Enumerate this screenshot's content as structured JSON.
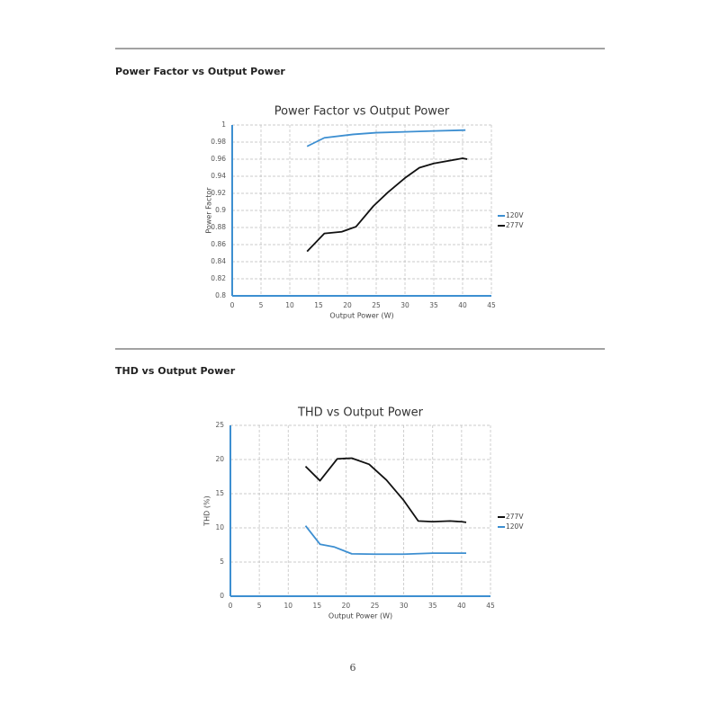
{
  "sections": [
    {
      "heading": "Power Factor vs Output Power"
    },
    {
      "heading": "THD vs Output Power"
    }
  ],
  "page_number": 6,
  "chart_data": [
    {
      "type": "line",
      "title": "Power Factor vs Output Power",
      "x_label": "Output Power (W)",
      "y_label": "Power Factor",
      "xlim": [
        0,
        45
      ],
      "xticks": [
        0,
        5,
        10,
        15,
        20,
        25,
        30,
        35,
        40,
        45
      ],
      "ylim": [
        0.8,
        1
      ],
      "yticks": [
        0.8,
        0.82,
        0.84,
        0.86,
        0.88,
        0.9,
        0.92,
        0.94,
        0.96,
        0.98,
        1
      ],
      "grid": true,
      "legend": "right",
      "series": [
        {
          "name": "120V",
          "color": "#3d8fd1",
          "x": [
            13,
            16,
            21,
            25,
            30,
            35,
            40.5
          ],
          "values": [
            0.975,
            0.985,
            0.989,
            0.991,
            0.992,
            0.993,
            0.994
          ]
        },
        {
          "name": "277V",
          "color": "#111111",
          "x": [
            13,
            16,
            19,
            21.5,
            24.5,
            27,
            30,
            32.5,
            35,
            40,
            40.8
          ],
          "values": [
            0.852,
            0.873,
            0.875,
            0.881,
            0.905,
            0.921,
            0.938,
            0.95,
            0.955,
            0.961,
            0.96
          ]
        }
      ]
    },
    {
      "type": "line",
      "title": "THD vs Output Power",
      "x_label": "Output Power (W)",
      "y_label": "THD (%)",
      "xlim": [
        0,
        45
      ],
      "xticks": [
        0,
        5,
        10,
        15,
        20,
        25,
        30,
        35,
        40,
        45
      ],
      "ylim": [
        0,
        25
      ],
      "yticks": [
        0,
        5,
        10,
        15,
        20,
        25
      ],
      "grid": true,
      "legend": "right",
      "series": [
        {
          "name": "277V",
          "color": "#111111",
          "x": [
            13,
            15.5,
            18.5,
            21,
            24,
            27,
            30,
            32.5,
            35,
            38,
            40,
            40.8
          ],
          "values": [
            19,
            16.9,
            20.1,
            20.2,
            19.3,
            17,
            14,
            11,
            10.9,
            11,
            10.9,
            10.8
          ]
        },
        {
          "name": "120V",
          "color": "#3d8fd1",
          "x": [
            13,
            15.5,
            18,
            21,
            25,
            30,
            35,
            40.8
          ],
          "values": [
            10.3,
            7.6,
            7.2,
            6.2,
            6.15,
            6.15,
            6.3,
            6.3
          ]
        }
      ]
    }
  ]
}
